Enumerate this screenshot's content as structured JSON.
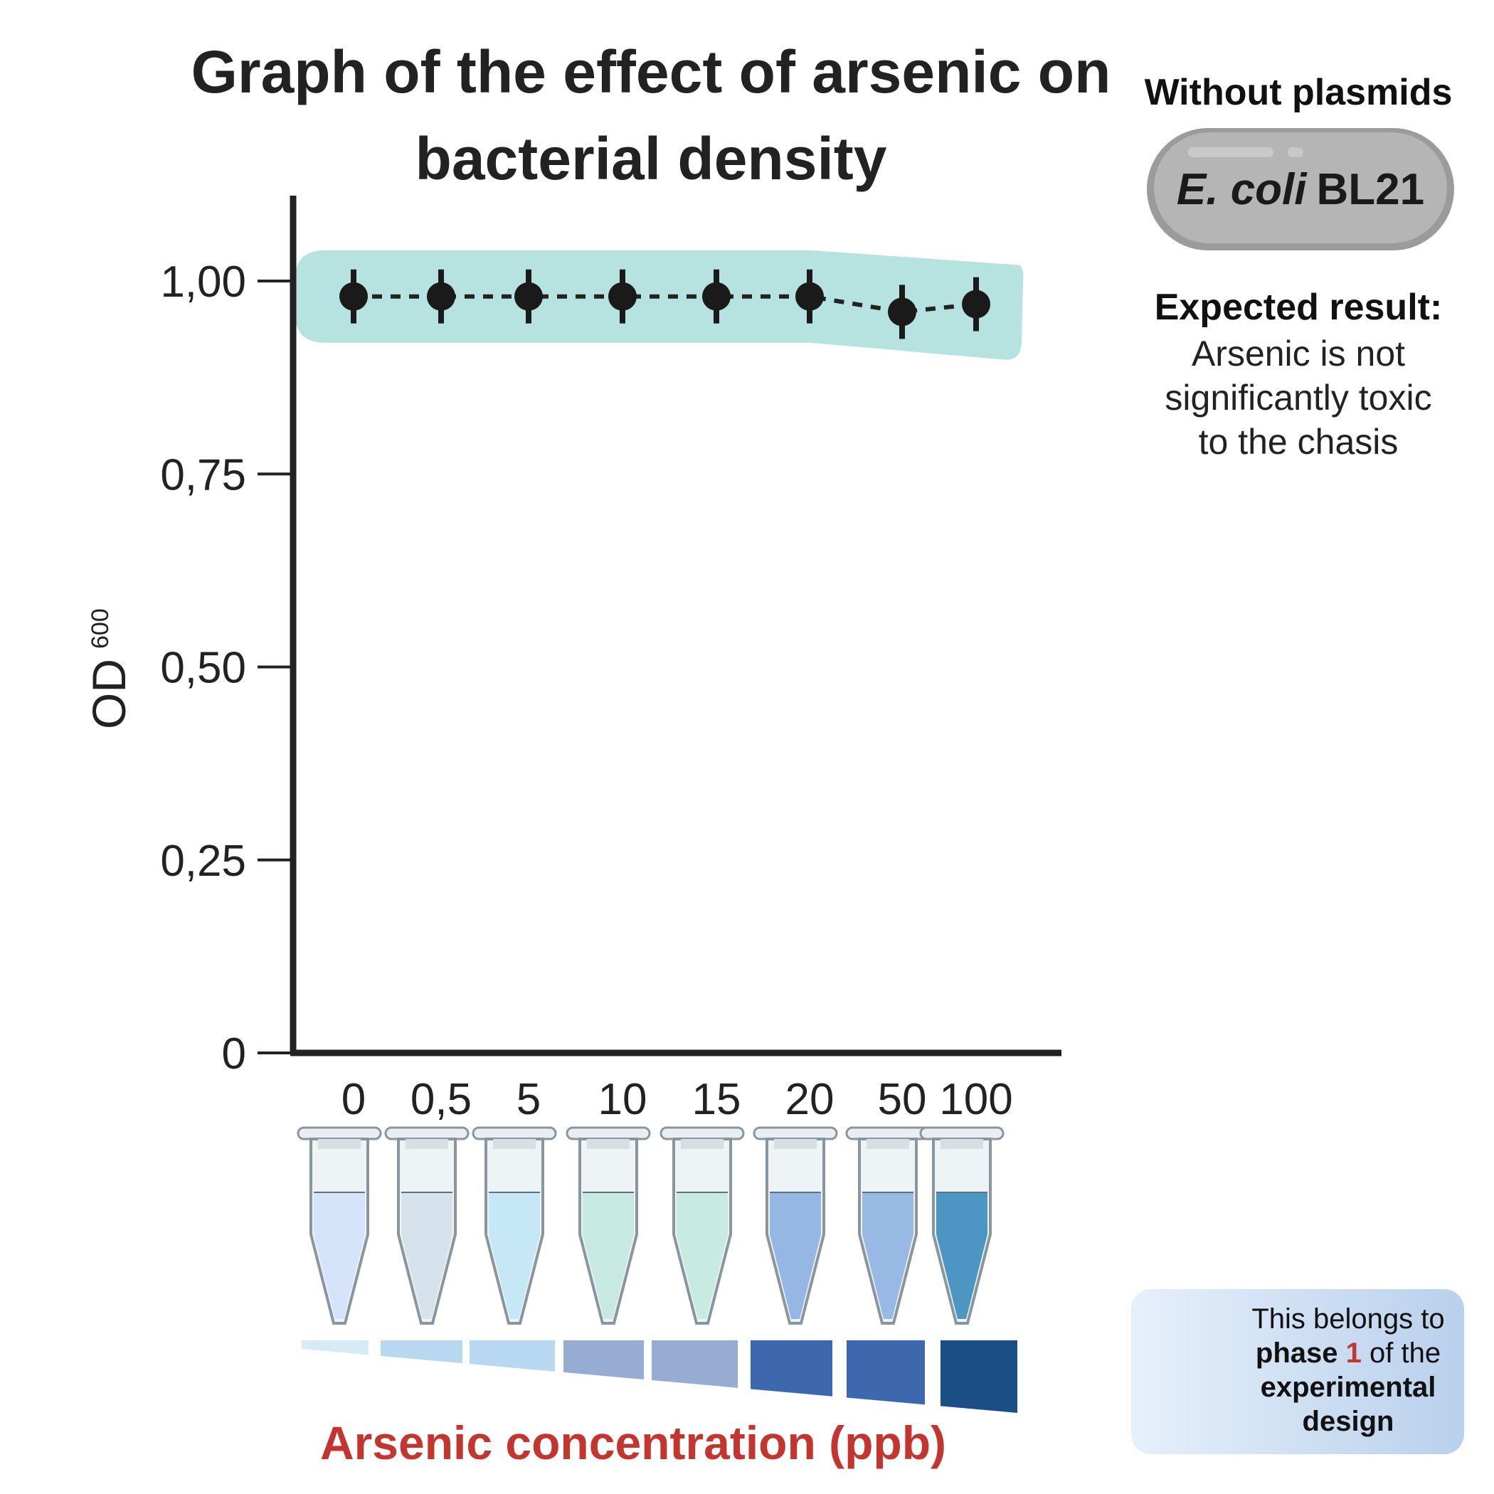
{
  "chart_data": {
    "type": "line",
    "title": "Graph of the effect of arsenic on bacterial density",
    "xlabel": "Arsenic concentration (ppb)",
    "ylabel": "OD",
    "ylabel_subscript": "600",
    "categories": [
      "0",
      "0,5",
      "5",
      "10",
      "15",
      "20",
      "50",
      "100"
    ],
    "values": [
      0.98,
      0.98,
      0.98,
      0.98,
      0.98,
      0.98,
      0.96,
      0.97
    ],
    "errors": [
      0.035,
      0.035,
      0.035,
      0.035,
      0.035,
      0.035,
      0.035,
      0.035
    ],
    "ylim": [
      0,
      1.0
    ],
    "yticks": [
      0,
      0.25,
      0.5,
      0.75,
      1.0
    ],
    "ytick_labels": [
      "0",
      "0,25",
      "0,50",
      "0,75",
      "1,00"
    ],
    "line_style": "dotted",
    "highlight_color": "#b6e2df",
    "marker_color": "#1a1a1a",
    "xlabel_color": "#c3362f",
    "tube_colors": [
      "#d6e4fb",
      "#d7e3ec",
      "#c6e7f5",
      "#c8e9e1",
      "#c8ebe1",
      "#96b7e4",
      "#98b9e4",
      "#4d96c3"
    ],
    "gradient_colors": [
      "#d5ecf4",
      "#b8d7f0",
      "#b8d7f0",
      "#97acd3",
      "#97acd3",
      "#3e68ad",
      "#3e68ad",
      "#1b4f84"
    ],
    "grid": false,
    "legend": "none"
  },
  "side_panel": {
    "strain_heading": "Without plasmids",
    "strain_italic": "E. coli",
    "strain_name": "BL21",
    "result_heading": "Expected result:",
    "result_lines": [
      "Arsenic is not",
      "significantly toxic",
      "to the chasis"
    ]
  },
  "phase_card": {
    "line1": "This belongs to",
    "phase_word": "phase",
    "phase_number": "1",
    "line2_rest": "of the",
    "line3": "experimental",
    "line4": "design",
    "icon": "goblet-dna-icon"
  }
}
